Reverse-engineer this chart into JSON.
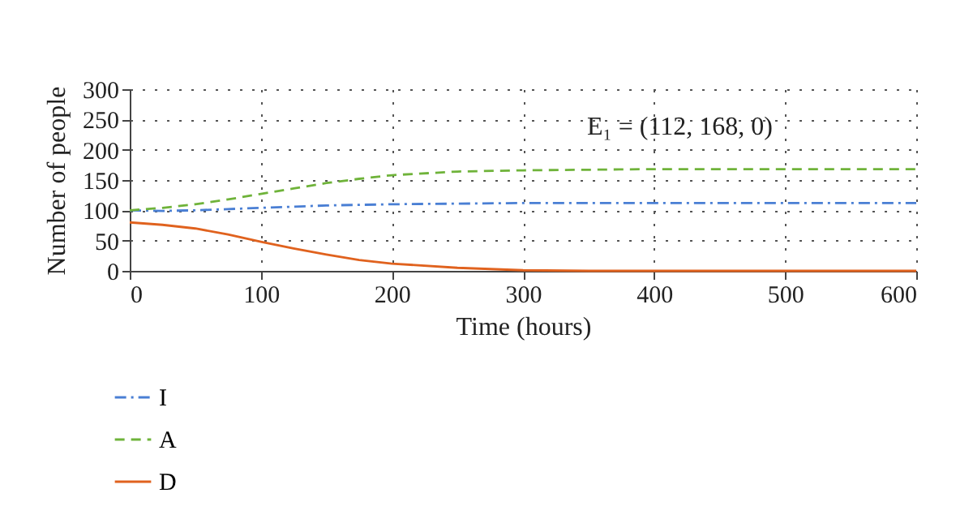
{
  "chart_data": {
    "type": "line",
    "xlabel": "Time (hours)",
    "ylabel": "Number of people",
    "x": [
      0,
      25,
      50,
      75,
      100,
      125,
      150,
      175,
      200,
      250,
      300,
      350,
      400,
      500,
      600
    ],
    "series": [
      {
        "name": "I",
        "color": "#4a7fd4",
        "line_style": "dotted",
        "values": [
          100,
          99,
          100,
          102,
          104,
          106,
          108,
          109,
          110,
          111,
          112,
          112,
          112,
          112,
          112
        ]
      },
      {
        "name": "A",
        "color": "#6fb33a",
        "line_style": "dashed",
        "values": [
          100,
          104,
          110,
          118,
          127,
          136,
          145,
          152,
          158,
          164,
          166,
          167,
          168,
          168,
          168
        ]
      },
      {
        "name": "D",
        "color": "#e0621e",
        "line_style": "solid",
        "values": [
          80,
          76,
          70,
          60,
          48,
          37,
          27,
          18,
          12,
          5,
          1,
          0,
          0,
          0,
          0
        ]
      }
    ],
    "xlim": [
      0,
      600
    ],
    "xticks": [
      0,
      100,
      200,
      300,
      400,
      500,
      600
    ],
    "ylim": [
      0,
      300
    ],
    "yticks": [
      0,
      50,
      100,
      150,
      200,
      250,
      300
    ],
    "annotations": [
      "E₁ = (112, 168, 0)"
    ],
    "grid": true,
    "legend": "bottom left",
    "marker": "none"
  }
}
